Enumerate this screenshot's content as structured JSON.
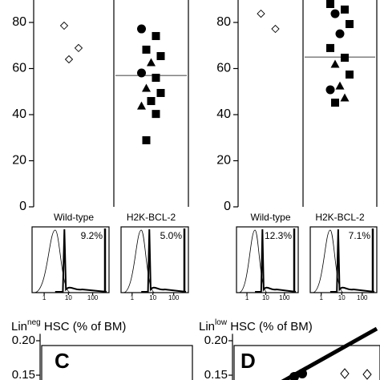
{
  "chart_data": [
    {
      "type": "strip",
      "categories": [
        "Wild-type",
        "H2K-BCL-2"
      ],
      "ylim": [
        0,
        90
      ],
      "yticks": [
        0,
        20,
        40,
        60,
        80
      ],
      "medians": [
        null,
        57
      ],
      "points": [
        {
          "category": 0,
          "marker": "diamond",
          "value": 78.6
        },
        {
          "category": 0,
          "marker": "diamond",
          "value": 68.9
        },
        {
          "category": 0,
          "marker": "diamond",
          "value": 64
        },
        {
          "category": 1,
          "marker": "circle",
          "value": 77.2
        },
        {
          "category": 1,
          "marker": "square",
          "value": 74.1
        },
        {
          "category": 1,
          "marker": "square",
          "value": 68.2
        },
        {
          "category": 1,
          "marker": "square",
          "value": 65.4
        },
        {
          "category": 1,
          "marker": "triangle",
          "value": 62.6
        },
        {
          "category": 1,
          "marker": "circle",
          "value": 58.1
        },
        {
          "category": 1,
          "marker": "square",
          "value": 56
        },
        {
          "category": 1,
          "marker": "triangle",
          "value": 51.5
        },
        {
          "category": 1,
          "marker": "square",
          "value": 49.4
        },
        {
          "category": 1,
          "marker": "square",
          "value": 45.9
        },
        {
          "category": 1,
          "marker": "triangle",
          "value": 43.8
        },
        {
          "category": 1,
          "marker": "square",
          "value": 40.3
        },
        {
          "category": 1,
          "marker": "square",
          "value": 28.9
        }
      ],
      "insets": [
        {
          "annotation": "9.2%"
        },
        {
          "annotation": "5.0%"
        }
      ],
      "inset_xlim": [
        0.5,
        300
      ],
      "inset_xticks": [
        1,
        10,
        100
      ],
      "inset_log_x": true
    },
    {
      "type": "strip",
      "categories": [
        "Wild-type",
        "H2K-BCL-2"
      ],
      "ylim": [
        0,
        90
      ],
      "yticks": [
        0,
        20,
        40,
        60,
        80
      ],
      "medians": [
        null,
        65
      ],
      "points": [
        {
          "category": 0,
          "marker": "diamond",
          "value": 83.8
        },
        {
          "category": 0,
          "marker": "diamond",
          "value": 77.2
        },
        {
          "category": 1,
          "marker": "square",
          "value": 88
        },
        {
          "category": 1,
          "marker": "square",
          "value": 85.6
        },
        {
          "category": 1,
          "marker": "circle",
          "value": 83.8
        },
        {
          "category": 1,
          "marker": "square",
          "value": 79.3
        },
        {
          "category": 1,
          "marker": "circle",
          "value": 75.1
        },
        {
          "category": 1,
          "marker": "square",
          "value": 68.9
        },
        {
          "category": 1,
          "marker": "square",
          "value": 64.7
        },
        {
          "category": 1,
          "marker": "triangle",
          "value": 61.9
        },
        {
          "category": 1,
          "marker": "square",
          "value": 57.4
        },
        {
          "category": 1,
          "marker": "triangle",
          "value": 52.5
        },
        {
          "category": 1,
          "marker": "circle",
          "value": 50.8
        },
        {
          "category": 1,
          "marker": "triangle",
          "value": 47.3
        },
        {
          "category": 1,
          "marker": "square",
          "value": 45.2
        }
      ],
      "insets": [
        {
          "annotation": "12.3%"
        },
        {
          "annotation": "7.1%"
        }
      ],
      "inset_xlim": [
        0.5,
        300
      ],
      "inset_xticks": [
        1,
        10,
        100
      ],
      "inset_log_x": true
    },
    {
      "type": "frame",
      "title": [
        "Lin",
        "neg",
        " HSC (% of BM)"
      ],
      "panel_label": "C",
      "ylim": [
        0.14,
        0.21
      ],
      "yticks": [
        {
          "value": 0.2,
          "label": "0.20"
        },
        {
          "value": 0.15,
          "label": "0.15"
        }
      ]
    },
    {
      "type": "frame",
      "title": [
        "Lin",
        "low",
        " HSC (% of BM)"
      ],
      "panel_label": "D",
      "ylim": [
        0.14,
        0.21
      ],
      "yticks": [
        {
          "value": 0.2,
          "label": "0.20"
        },
        {
          "value": 0.15,
          "label": "0.15"
        }
      ]
    }
  ]
}
